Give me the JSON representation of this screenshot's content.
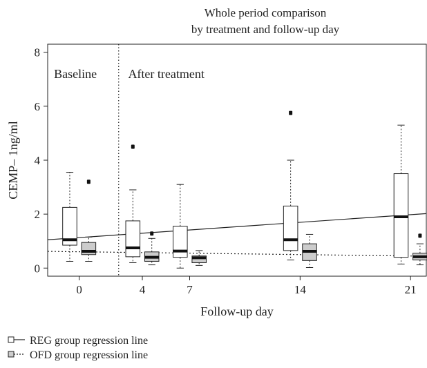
{
  "chart_data": {
    "type": "box",
    "title_lines": [
      "Whole period comparison",
      "by treatment and follow-up day"
    ],
    "xlabel": "Follow-up day",
    "ylabel": "CEMP– 1ng/ml",
    "xlim": [
      -2,
      22
    ],
    "ylim": [
      -0.3,
      8.3
    ],
    "x_ticks": [
      0,
      4,
      7,
      14,
      21
    ],
    "y_ticks": [
      0,
      2,
      4,
      6,
      8
    ],
    "divider_x": 2.5,
    "region_labels": [
      {
        "text": "Baseline",
        "x": -1.6
      },
      {
        "text": "After treatment",
        "x": 3.1
      }
    ],
    "region_label_y": 7.2,
    "groups": [
      {
        "name": "REG group",
        "fill": "#ffffff",
        "offset": -0.6,
        "halfwidth": 0.45,
        "boxes": [
          {
            "day": 0,
            "min": 0.25,
            "q1": 0.85,
            "median": 1.05,
            "q3": 2.25,
            "max": 3.55,
            "outliers": []
          },
          {
            "day": 4,
            "min": 0.2,
            "q1": 0.42,
            "median": 0.75,
            "q3": 1.75,
            "max": 2.9,
            "outliers": [
              4.5
            ]
          },
          {
            "day": 7,
            "min": 0.0,
            "q1": 0.4,
            "median": 0.63,
            "q3": 1.55,
            "max": 3.1,
            "outliers": []
          },
          {
            "day": 14,
            "min": 0.3,
            "q1": 0.65,
            "median": 1.05,
            "q3": 2.3,
            "max": 4.0,
            "outliers": [
              5.75
            ]
          },
          {
            "day": 21,
            "min": 0.15,
            "q1": 0.4,
            "median": 1.9,
            "q3": 3.5,
            "max": 5.3,
            "outliers": []
          }
        ]
      },
      {
        "name": "OFD group",
        "fill": "#cccccc",
        "offset": 0.6,
        "halfwidth": 0.45,
        "boxes": [
          {
            "day": 0,
            "min": 0.25,
            "q1": 0.5,
            "median": 0.62,
            "q3": 0.95,
            "max": 1.15,
            "outliers": [
              3.2
            ]
          },
          {
            "day": 4,
            "min": 0.12,
            "q1": 0.25,
            "median": 0.4,
            "q3": 0.6,
            "max": 1.1,
            "outliers": [
              1.28
            ]
          },
          {
            "day": 7,
            "min": 0.1,
            "q1": 0.2,
            "median": 0.38,
            "q3": 0.45,
            "max": 0.65,
            "outliers": []
          },
          {
            "day": 14,
            "min": 0.02,
            "q1": 0.28,
            "median": 0.62,
            "q3": 0.9,
            "max": 1.25,
            "outliers": []
          },
          {
            "day": 21,
            "min": 0.12,
            "q1": 0.3,
            "median": 0.42,
            "q3": 0.55,
            "max": 0.9,
            "outliers": [
              1.2
            ]
          }
        ]
      }
    ],
    "regression_lines": [
      {
        "group": "REG",
        "style": "solid",
        "x0": -2,
        "y0": 1.05,
        "x1": 22,
        "y1": 2.02
      },
      {
        "group": "OFD",
        "style": "dotted",
        "x0": -2,
        "y0": 0.62,
        "x1": 22,
        "y1": 0.44
      }
    ],
    "legend": [
      {
        "label": "REG group regression line",
        "style": "solid",
        "fill": "#ffffff"
      },
      {
        "label": "OFD group regression line",
        "style": "dotted",
        "fill": "#cccccc"
      }
    ]
  }
}
